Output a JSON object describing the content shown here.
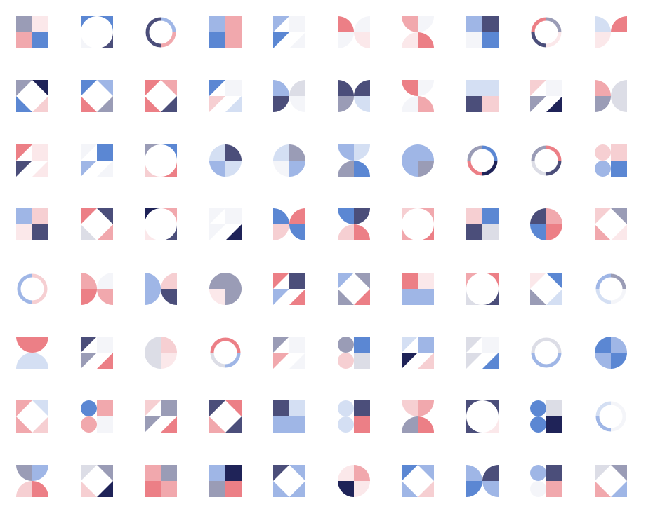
{
  "palette": {
    "navy": "#1f2358",
    "slate": "#4b4e7a",
    "gray_blue": "#9a9cb6",
    "light_gray": "#dcdde6",
    "pale": "#f4f5f9",
    "blue": "#5b87d3",
    "light_blue": "#9fb6e6",
    "pale_blue": "#d4dff3",
    "coral": "#ec7f86",
    "pink": "#f1a8ad",
    "light_pink": "#f6cfd2",
    "blush": "#fbe8ea",
    "white": "#ffffff"
  },
  "tiles": [
    {
      "type": "quads",
      "colors": [
        "gray_blue",
        "blush",
        "pink",
        "blue"
      ]
    },
    {
      "type": "concave",
      "colors": [
        "blue",
        "blue",
        "pale",
        "slate"
      ]
    },
    {
      "type": "ring",
      "colors": [
        "light_blue",
        "pink",
        "slate",
        "slate"
      ]
    },
    {
      "type": "quads",
      "colors": [
        "light_blue",
        "pink",
        "blue",
        "pink"
      ]
    },
    {
      "type": "triangles",
      "colors": [
        "light_blue",
        "pale",
        "blue",
        "pale"
      ]
    },
    {
      "type": "bowtie",
      "colors": [
        "coral",
        "pale",
        "pale",
        "blush"
      ]
    },
    {
      "type": "hourglass",
      "colors": [
        "pink",
        "pale",
        "blush",
        "coral"
      ]
    },
    {
      "type": "quads",
      "colors": [
        "light_blue",
        "slate",
        "pale",
        "blue"
      ]
    },
    {
      "type": "ring",
      "colors": [
        "gray_blue",
        "blush",
        "slate",
        "coral"
      ]
    },
    {
      "type": "bowtie",
      "colors": [
        "pale_blue",
        "coral",
        "blush",
        "white"
      ]
    },
    {
      "type": "diamond",
      "colors": [
        "gray_blue",
        "navy",
        "blue",
        "light_pink"
      ]
    },
    {
      "type": "diamond",
      "colors": [
        "blue",
        "light_blue",
        "coral",
        "gray_blue"
      ]
    },
    {
      "type": "diamond",
      "colors": [
        "coral",
        "pink",
        "coral",
        "slate"
      ]
    },
    {
      "type": "triangles",
      "colors": [
        "blue",
        "pale",
        "light_pink",
        "pale_blue"
      ]
    },
    {
      "type": "bowtie",
      "colors": [
        "light_blue",
        "light_gray",
        "slate",
        "pale"
      ]
    },
    {
      "type": "bowtie",
      "colors": [
        "slate",
        "slate",
        "gray_blue",
        "pale_blue"
      ]
    },
    {
      "type": "hourglass",
      "colors": [
        "coral",
        "pale",
        "pale",
        "pink"
      ]
    },
    {
      "type": "quads",
      "colors": [
        "pale_blue",
        "pale_blue",
        "slate",
        "light_pink"
      ]
    },
    {
      "type": "triangles",
      "colors": [
        "light_pink",
        "pale",
        "gray_blue",
        "navy"
      ]
    },
    {
      "type": "bowtie",
      "colors": [
        "pink",
        "light_gray",
        "gray_blue",
        "light_gray"
      ]
    },
    {
      "type": "triangles",
      "colors": [
        "coral",
        "blush",
        "slate",
        "blush"
      ]
    },
    {
      "type": "triangles",
      "colors": [
        "pale",
        "blue",
        "light_blue",
        "pale"
      ]
    },
    {
      "type": "concave",
      "colors": [
        "gray_blue",
        "blue",
        "light_pink",
        "coral"
      ]
    },
    {
      "type": "pie",
      "colors": [
        "pale_blue",
        "slate",
        "light_blue",
        "pale_blue"
      ]
    },
    {
      "type": "pie",
      "colors": [
        "pale_blue",
        "gray_blue",
        "pale",
        "light_blue"
      ]
    },
    {
      "type": "hourglass",
      "colors": [
        "light_blue",
        "pale_blue",
        "gray_blue",
        "blue"
      ]
    },
    {
      "type": "pie",
      "colors": [
        "light_blue",
        "light_blue",
        "light_blue",
        "gray_blue"
      ]
    },
    {
      "type": "ring",
      "colors": [
        "blue",
        "navy",
        "coral",
        "gray_blue"
      ]
    },
    {
      "type": "ring",
      "colors": [
        "coral",
        "slate",
        "light_gray",
        "gray_blue"
      ]
    },
    {
      "type": "circles",
      "colors": [
        "light_pink",
        "light_pink",
        "light_blue",
        "blue"
      ]
    },
    {
      "type": "quads",
      "colors": [
        "light_blue",
        "light_pink",
        "blush",
        "slate"
      ]
    },
    {
      "type": "diamond",
      "colors": [
        "coral",
        "slate",
        "light_gray",
        "pink"
      ]
    },
    {
      "type": "concave",
      "colors": [
        "navy",
        "pink",
        "blush",
        "slate"
      ]
    },
    {
      "type": "triangles",
      "colors": [
        "pale",
        "pale",
        "pale",
        "navy"
      ]
    },
    {
      "type": "bowtie",
      "colors": [
        "blue",
        "coral",
        "light_pink",
        "blue"
      ]
    },
    {
      "type": "hourglass",
      "colors": [
        "blue",
        "slate",
        "light_pink",
        "coral"
      ]
    },
    {
      "type": "concave",
      "colors": [
        "light_pink",
        "pink",
        "pink",
        "coral"
      ]
    },
    {
      "type": "quads",
      "colors": [
        "light_pink",
        "blue",
        "slate",
        "light_gray"
      ]
    },
    {
      "type": "pie",
      "colors": [
        "slate",
        "pink",
        "blue",
        "coral"
      ]
    },
    {
      "type": "diamond",
      "colors": [
        "light_pink",
        "gray_blue",
        "pink",
        "blush"
      ]
    },
    {
      "type": "ring",
      "colors": [
        "light_pink",
        "light_pink",
        "light_blue",
        "light_blue"
      ]
    },
    {
      "type": "bowtie",
      "colors": [
        "pink",
        "pale",
        "coral",
        "pink"
      ]
    },
    {
      "type": "bowtie",
      "colors": [
        "light_blue",
        "light_pink",
        "light_blue",
        "slate"
      ]
    },
    {
      "type": "pie",
      "colors": [
        "gray_blue",
        "gray_blue",
        "blush",
        "gray_blue"
      ]
    },
    {
      "type": "triangles",
      "colors": [
        "coral",
        "slate",
        "light_blue",
        "coral"
      ]
    },
    {
      "type": "diamond",
      "colors": [
        "light_blue",
        "gray_blue",
        "gray_blue",
        "coral"
      ]
    },
    {
      "type": "quads",
      "colors": [
        "coral",
        "blush",
        "light_blue",
        "light_blue"
      ]
    },
    {
      "type": "concave",
      "colors": [
        "pink",
        "coral",
        "light_gray",
        "slate"
      ]
    },
    {
      "type": "diamond",
      "colors": [
        "blush",
        "blue",
        "gray_blue",
        "pale_blue"
      ]
    },
    {
      "type": "ring",
      "colors": [
        "gray_blue",
        "pale",
        "pale_blue",
        "light_blue"
      ]
    },
    {
      "type": "halves",
      "colors": [
        "coral",
        "light_gray",
        "pale_blue",
        "pale_blue"
      ]
    },
    {
      "type": "triangles",
      "colors": [
        "slate",
        "pale",
        "gray_blue",
        "coral"
      ]
    },
    {
      "type": "pie",
      "colors": [
        "light_gray",
        "light_pink",
        "light_gray",
        "blush"
      ]
    },
    {
      "type": "ring",
      "colors": [
        "coral",
        "light_blue",
        "light_gray",
        "coral"
      ]
    },
    {
      "type": "triangles",
      "colors": [
        "gray_blue",
        "pale",
        "pink",
        "pale"
      ]
    },
    {
      "type": "circles",
      "colors": [
        "gray_blue",
        "blue",
        "light_pink",
        "light_gray"
      ]
    },
    {
      "type": "triangles",
      "colors": [
        "pale_blue",
        "light_blue",
        "navy",
        "light_pink"
      ]
    },
    {
      "type": "triangles",
      "colors": [
        "light_gray",
        "pale",
        "light_gray",
        "blue"
      ]
    },
    {
      "type": "ring",
      "colors": [
        "light_gray",
        "light_blue",
        "light_blue",
        "light_gray"
      ]
    },
    {
      "type": "pie",
      "colors": [
        "blue",
        "light_blue",
        "light_blue",
        "blue"
      ]
    },
    {
      "type": "diamond",
      "colors": [
        "pink",
        "pale_blue",
        "pink",
        "light_pink"
      ]
    },
    {
      "type": "circles",
      "colors": [
        "blue",
        "pink",
        "pink",
        "pale"
      ]
    },
    {
      "type": "triangles",
      "colors": [
        "light_pink",
        "gray_blue",
        "gray_blue",
        "coral"
      ]
    },
    {
      "type": "diamond",
      "colors": [
        "slate",
        "coral",
        "pink",
        "slate"
      ]
    },
    {
      "type": "quads",
      "colors": [
        "slate",
        "pale_blue",
        "light_blue",
        "light_blue"
      ]
    },
    {
      "type": "circles",
      "colors": [
        "pale_blue",
        "slate",
        "pale_blue",
        "coral"
      ]
    },
    {
      "type": "hourglass",
      "colors": [
        "light_pink",
        "pink",
        "gray_blue",
        "coral"
      ]
    },
    {
      "type": "concave",
      "colors": [
        "slate",
        "slate",
        "slate",
        "blush"
      ]
    },
    {
      "type": "circles",
      "colors": [
        "blue",
        "light_gray",
        "blue",
        "navy"
      ]
    },
    {
      "type": "ring",
      "colors": [
        "pale",
        "pale",
        "light_blue",
        "pale_blue"
      ]
    },
    {
      "type": "hourglass",
      "colors": [
        "gray_blue",
        "light_blue",
        "light_pink",
        "coral"
      ]
    },
    {
      "type": "diamond",
      "colors": [
        "light_gray",
        "gray_blue",
        "light_pink",
        "navy"
      ]
    },
    {
      "type": "quads",
      "colors": [
        "pink",
        "gray_blue",
        "coral",
        "pink"
      ]
    },
    {
      "type": "quads",
      "colors": [
        "light_blue",
        "navy",
        "gray_blue",
        "coral"
      ]
    },
    {
      "type": "diamond",
      "colors": [
        "slate",
        "light_blue",
        "light_blue",
        "light_blue"
      ]
    },
    {
      "type": "pie",
      "colors": [
        "blush",
        "pink",
        "navy",
        "blush"
      ]
    },
    {
      "type": "diamond",
      "colors": [
        "blue",
        "light_blue",
        "light_blue",
        "light_pink"
      ]
    },
    {
      "type": "bowtie",
      "colors": [
        "light_blue",
        "slate",
        "blue",
        "light_blue"
      ]
    },
    {
      "type": "circles",
      "colors": [
        "light_blue",
        "slate",
        "pale",
        "pink"
      ]
    },
    {
      "type": "diamond",
      "colors": [
        "light_gray",
        "gray_blue",
        "pink",
        "light_blue"
      ]
    }
  ]
}
